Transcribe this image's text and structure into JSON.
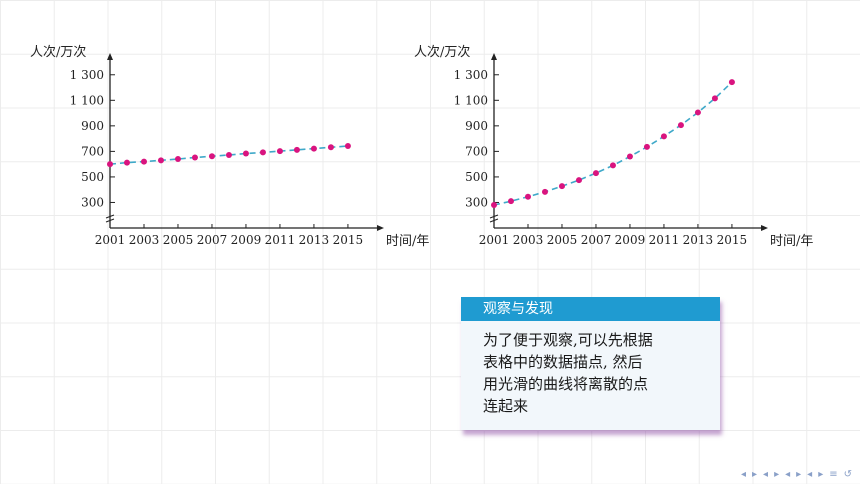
{
  "chart_data": [
    {
      "type": "line",
      "ylabel": "人次/万次",
      "xlabel": "时间/年",
      "x_ticks": [
        "2001",
        "2003",
        "2005",
        "2007",
        "2009",
        "2011",
        "2013",
        "2015"
      ],
      "y_ticks": [
        "300",
        "500",
        "700",
        "900",
        "1 100",
        "1 300"
      ],
      "ylim": [
        100,
        1400
      ],
      "xlim": [
        2001,
        2015.8
      ],
      "series": [
        {
          "x": [
            2001,
            2002,
            2003,
            2004,
            2005,
            2006,
            2007,
            2008,
            2009,
            2010,
            2011,
            2012,
            2013,
            2014,
            2015
          ],
          "y": [
            600,
            612,
            620,
            630,
            640,
            652,
            662,
            672,
            683,
            692,
            702,
            712,
            722,
            732,
            742
          ]
        }
      ],
      "grid": false,
      "style": {
        "line": "#3fa9c9",
        "marker": "#d9147f"
      }
    },
    {
      "type": "line",
      "ylabel": "人次/万次",
      "xlabel": "时间/年",
      "x_ticks": [
        "2001",
        "2003",
        "2005",
        "2007",
        "2009",
        "2011",
        "2013",
        "2015"
      ],
      "y_ticks": [
        "300",
        "500",
        "700",
        "900",
        "1 100",
        "1 300"
      ],
      "ylim": [
        100,
        1400
      ],
      "xlim": [
        2001,
        2015.8
      ],
      "series": [
        {
          "x": [
            2001,
            2002,
            2003,
            2004,
            2005,
            2006,
            2007,
            2008,
            2009,
            2010,
            2011,
            2012,
            2013,
            2014,
            2015
          ],
          "y": [
            280,
            310,
            345,
            383,
            428,
            475,
            530,
            590,
            660,
            735,
            818,
            906,
            1005,
            1115,
            1242
          ]
        }
      ],
      "grid": false,
      "style": {
        "line": "#3fa9c9",
        "marker": "#d9147f"
      }
    }
  ],
  "callout": {
    "title": "观察与发现",
    "lines": [
      "为了便于观察,可以先根据",
      "表格中的数据描点, 然后",
      "用光滑的曲线将离散的点",
      "连起来"
    ]
  },
  "nav": {
    "icons": [
      "prev-slide-icon",
      "frame-icon",
      "section-icon",
      "subsection-icon",
      "align-icon",
      "search-icon"
    ],
    "glyphs": [
      "◂",
      "▸",
      "◂",
      "▸",
      "◂",
      "▸",
      "◂",
      "▸",
      "≡",
      "↺"
    ]
  }
}
